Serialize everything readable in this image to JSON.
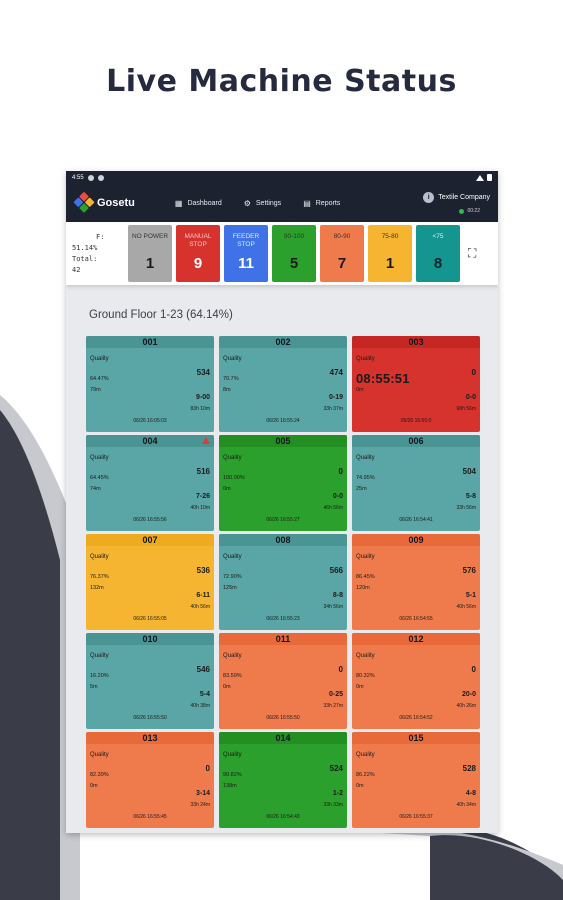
{
  "headline": "Live Machine Status",
  "colors": {
    "teal": "#5aa5a5",
    "red": "#d6322e",
    "green": "#2ca02c",
    "orange": "#ef7a4c",
    "yellow": "#f5b530",
    "gray": "#a8a8a8",
    "blue": "#3e72e6",
    "dark_teal": "#15958f"
  },
  "status_bar": {
    "time": "4:55"
  },
  "app": {
    "name": "Gosetu",
    "nav": [
      {
        "icon": "dashboard-icon",
        "label": "Dashboard"
      },
      {
        "icon": "gear-icon",
        "label": "Settings"
      },
      {
        "icon": "reports-icon",
        "label": "Reports"
      }
    ],
    "company": "Textile Company",
    "online_count": "00:22"
  },
  "summary": {
    "f_line": "F:",
    "f_value": "51.14%",
    "total_line": "Total:",
    "total_value": "42",
    "tiles": [
      {
        "label": "NO POWER",
        "count": "1",
        "color": "gray"
      },
      {
        "label": "MANUAL STOP",
        "count": "9",
        "color": "red"
      },
      {
        "label": "FEEDER STOP",
        "count": "11",
        "color": "blue"
      },
      {
        "label": "90-100",
        "count": "5",
        "color": "green"
      },
      {
        "label": "80-90",
        "count": "7",
        "color": "orange"
      },
      {
        "label": "75-80",
        "count": "1",
        "color": "yellow"
      },
      {
        "label": "<75",
        "count": "8",
        "color": "dark_teal"
      }
    ]
  },
  "section_title": "Ground Floor 1-23 (64.14%)",
  "machines": [
    {
      "id": "001",
      "color": "teal",
      "quality": "Quality",
      "pct": "64.47%",
      "mins": "79m",
      "count": "534",
      "shift": "9-00",
      "dur": "83h 10m",
      "ts": "06/26 16:05:03",
      "timer": "",
      "warn": false
    },
    {
      "id": "002",
      "color": "teal",
      "quality": "Quality",
      "pct": "70.7%",
      "mins": "8m",
      "count": "474",
      "shift": "0-19",
      "dur": "33h 37m",
      "ts": "06/26 16:55:24",
      "timer": "",
      "warn": false
    },
    {
      "id": "003",
      "color": "red",
      "quality": "Quality",
      "pct": "",
      "mins": "0m",
      "count": "0",
      "shift": "0-0",
      "dur": "68h 56m",
      "ts": "06/26 16:55:0",
      "timer": "08:55:51",
      "warn": false
    },
    {
      "id": "004",
      "color": "teal",
      "quality": "Quality",
      "pct": "64.45%",
      "mins": "74m",
      "count": "516",
      "shift": "7-26",
      "dur": "40h 10m",
      "ts": "06/26 16:55:56",
      "timer": "",
      "warn": true
    },
    {
      "id": "005",
      "color": "green",
      "quality": "Quality",
      "pct": "100.00%",
      "mins": "0m",
      "count": "0",
      "shift": "0-0",
      "dur": "46h 56m",
      "ts": "06/26 16:55:27",
      "timer": "",
      "warn": false
    },
    {
      "id": "006",
      "color": "teal",
      "quality": "Quality",
      "pct": "74.95%",
      "mins": "25m",
      "count": "504",
      "shift": "5-8",
      "dur": "33h 56m",
      "ts": "06/26 16:54:41",
      "timer": "",
      "warn": false
    },
    {
      "id": "007",
      "color": "yellow",
      "quality": "Quality",
      "pct": "76.37%",
      "mins": "132m",
      "count": "536",
      "shift": "6-11",
      "dur": "40h 56m",
      "ts": "06/26 16:55:05",
      "timer": "",
      "warn": false
    },
    {
      "id": "008",
      "color": "teal",
      "quality": "Quality",
      "pct": "72.90%",
      "mins": "125m",
      "count": "566",
      "shift": "8-8",
      "dur": "34h 56m",
      "ts": "06/26 16:55:23",
      "timer": "",
      "warn": false
    },
    {
      "id": "009",
      "color": "orange",
      "quality": "Quality",
      "pct": "86.45%",
      "mins": "120m",
      "count": "576",
      "shift": "5-1",
      "dur": "40h 56m",
      "ts": "06/26 16:54:55",
      "timer": "",
      "warn": false
    },
    {
      "id": "010",
      "color": "teal",
      "quality": "Quality",
      "pct": "16.20%",
      "mins": "5m",
      "count": "546",
      "shift": "5-4",
      "dur": "40h 38m",
      "ts": "06/26 16:55:50",
      "timer": "",
      "warn": false
    },
    {
      "id": "011",
      "color": "orange",
      "quality": "Quality",
      "pct": "83.59%",
      "mins": "0m",
      "count": "0",
      "shift": "0-25",
      "dur": "33h 27m",
      "ts": "06/26 16:55:50",
      "timer": "",
      "warn": false
    },
    {
      "id": "012",
      "color": "orange",
      "quality": "Quality",
      "pct": "80.32%",
      "mins": "0m",
      "count": "0",
      "shift": "20-0",
      "dur": "40h 26m",
      "ts": "06/26 16:54:52",
      "timer": "",
      "warn": false
    },
    {
      "id": "013",
      "color": "orange",
      "quality": "Quality",
      "pct": "82.39%",
      "mins": "0m",
      "count": "0",
      "shift": "3-14",
      "dur": "33h 24m",
      "ts": "06/26 16:55:45",
      "timer": "",
      "warn": false
    },
    {
      "id": "014",
      "color": "green",
      "quality": "Quality",
      "pct": "90.82%",
      "mins": "138m",
      "count": "524",
      "shift": "1-2",
      "dur": "33h 33m",
      "ts": "06/26 16:54:43",
      "timer": "",
      "warn": false
    },
    {
      "id": "015",
      "color": "orange",
      "quality": "Quality",
      "pct": "86.22%",
      "mins": "0m",
      "count": "528",
      "shift": "4-8",
      "dur": "40h 34m",
      "ts": "06/26 16:55:37",
      "timer": "",
      "warn": false
    }
  ]
}
